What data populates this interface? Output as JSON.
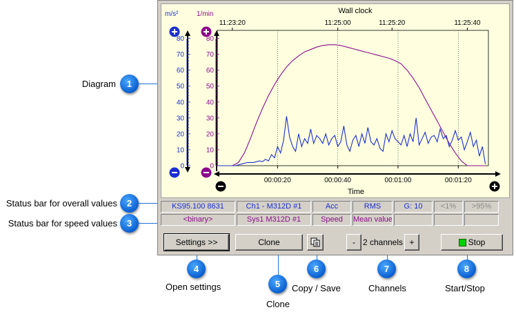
{
  "annotations": {
    "diagram": {
      "label": "Diagram",
      "num": "1"
    },
    "status_overall": {
      "label": "Status bar for overall values",
      "num": "2"
    },
    "status_speed": {
      "label": "Status bar for speed values",
      "num": "3"
    },
    "open_settings": {
      "label": "Open settings",
      "num": "4"
    },
    "clone": {
      "label": "Clone",
      "num": "5"
    },
    "copy_save": {
      "label": "Copy / Save",
      "num": "6"
    },
    "channels": {
      "label": "Channels",
      "num": "7"
    },
    "start_stop": {
      "label": "Start/Stop",
      "num": "8"
    }
  },
  "chart_data": {
    "type": "line",
    "title": "",
    "top_axis_label": "Wall clock",
    "top_ticks": [
      "11:23:20",
      "11:25:00",
      "11:25:20",
      "11:25:40"
    ],
    "xlabel": "Time",
    "x_ticks": [
      "00:00:20",
      "00:00:40",
      "00:01:00",
      "00:01:20"
    ],
    "x_range": [
      0,
      90
    ],
    "left_unit": "m/s²",
    "right_unit": "1/min",
    "y_ticks": [
      0,
      10,
      20,
      30,
      40,
      50,
      60,
      70,
      80
    ],
    "ylim": [
      0,
      85
    ],
    "colors": {
      "accel": "#1a2fd0",
      "speed": "#8b0a8b"
    },
    "series": [
      {
        "x": [
          0,
          3,
          5,
          7,
          9,
          11,
          13,
          15,
          17,
          19,
          21,
          23,
          25,
          27,
          29,
          31,
          33,
          35,
          37,
          39,
          41,
          43,
          45,
          47,
          49,
          51,
          53,
          55,
          57,
          59,
          61,
          63,
          65,
          67,
          69,
          71,
          73,
          75,
          77,
          79,
          81,
          83,
          85,
          87,
          88,
          89
        ],
        "values": [
          0,
          0,
          0,
          2,
          8,
          17,
          27,
          36,
          44,
          51,
          57,
          62,
          66,
          69,
          71.5,
          73,
          74.5,
          75.5,
          76,
          76,
          75.5,
          74.5,
          73.5,
          72.5,
          71.5,
          70.5,
          69.5,
          68.5,
          67.5,
          66,
          64,
          60,
          55,
          49,
          42,
          35,
          28,
          21,
          14,
          8,
          3,
          0,
          0,
          0,
          0,
          0
        ]
      },
      {
        "x": [
          0,
          2,
          4,
          6,
          8,
          10,
          12,
          14,
          15,
          16,
          17,
          18,
          19,
          20,
          21,
          22,
          23,
          24,
          25,
          26,
          27,
          28,
          29,
          30,
          31,
          32,
          33,
          34,
          35,
          36,
          37,
          38,
          39,
          40,
          41,
          42,
          43,
          44,
          45,
          46,
          47,
          48,
          49,
          50,
          51,
          52,
          53,
          54,
          55,
          56,
          57,
          58,
          59,
          60,
          61,
          62,
          63,
          64,
          65,
          66,
          67,
          68,
          69,
          70,
          71,
          72,
          73,
          74,
          75,
          76,
          77,
          78,
          79,
          80,
          81,
          82,
          83,
          84,
          85,
          86,
          87,
          88,
          89
        ],
        "values": [
          0,
          0,
          0,
          0,
          1,
          2,
          2,
          3,
          2.5,
          4,
          3,
          7,
          5,
          12,
          8,
          16,
          31,
          18,
          12,
          9,
          20,
          12,
          17,
          14,
          23,
          14,
          19,
          17,
          14,
          20,
          13,
          17,
          19,
          12,
          15,
          25,
          13,
          9,
          16,
          19,
          12,
          20,
          14,
          24,
          15,
          13,
          17,
          11,
          9,
          20,
          15,
          22,
          17,
          15,
          13,
          19,
          12,
          20,
          15,
          30,
          13,
          17,
          21,
          14,
          18,
          19,
          15,
          23,
          17,
          19,
          12,
          16,
          22,
          16,
          18,
          10,
          15,
          21,
          12,
          16,
          6,
          12,
          1
        ]
      }
    ]
  },
  "status_overall": [
    {
      "text": "KS95.100 8631",
      "style": "blue"
    },
    {
      "text": "Ch1 - M312D #1",
      "style": "blue"
    },
    {
      "text": "Acc",
      "style": "blue"
    },
    {
      "text": "RMS",
      "style": "blue"
    },
    {
      "text": "G: 10",
      "style": "blue"
    },
    {
      "text": "<1%",
      "style": "gray"
    },
    {
      "text": ">95%",
      "style": "gray"
    }
  ],
  "status_speed": [
    {
      "text": "<binary>",
      "style": "purple"
    },
    {
      "text": "Sys1 M312D #1",
      "style": "purple"
    },
    {
      "text": "Speed",
      "style": "purple"
    },
    {
      "text": "Mean value",
      "style": "purple"
    },
    {
      "text": "",
      "style": "gray"
    },
    {
      "text": "",
      "style": "gray"
    },
    {
      "text": "",
      "style": "gray"
    }
  ],
  "buttons": {
    "settings": "Settings >>",
    "clone": "Clone",
    "minus": "-",
    "channels": "2 channels",
    "plus": "+",
    "stop": "Stop"
  },
  "icons": {
    "copy": "copy-icon",
    "zoom_in": "plus-circle-icon",
    "zoom_out": "minus-circle-icon"
  }
}
